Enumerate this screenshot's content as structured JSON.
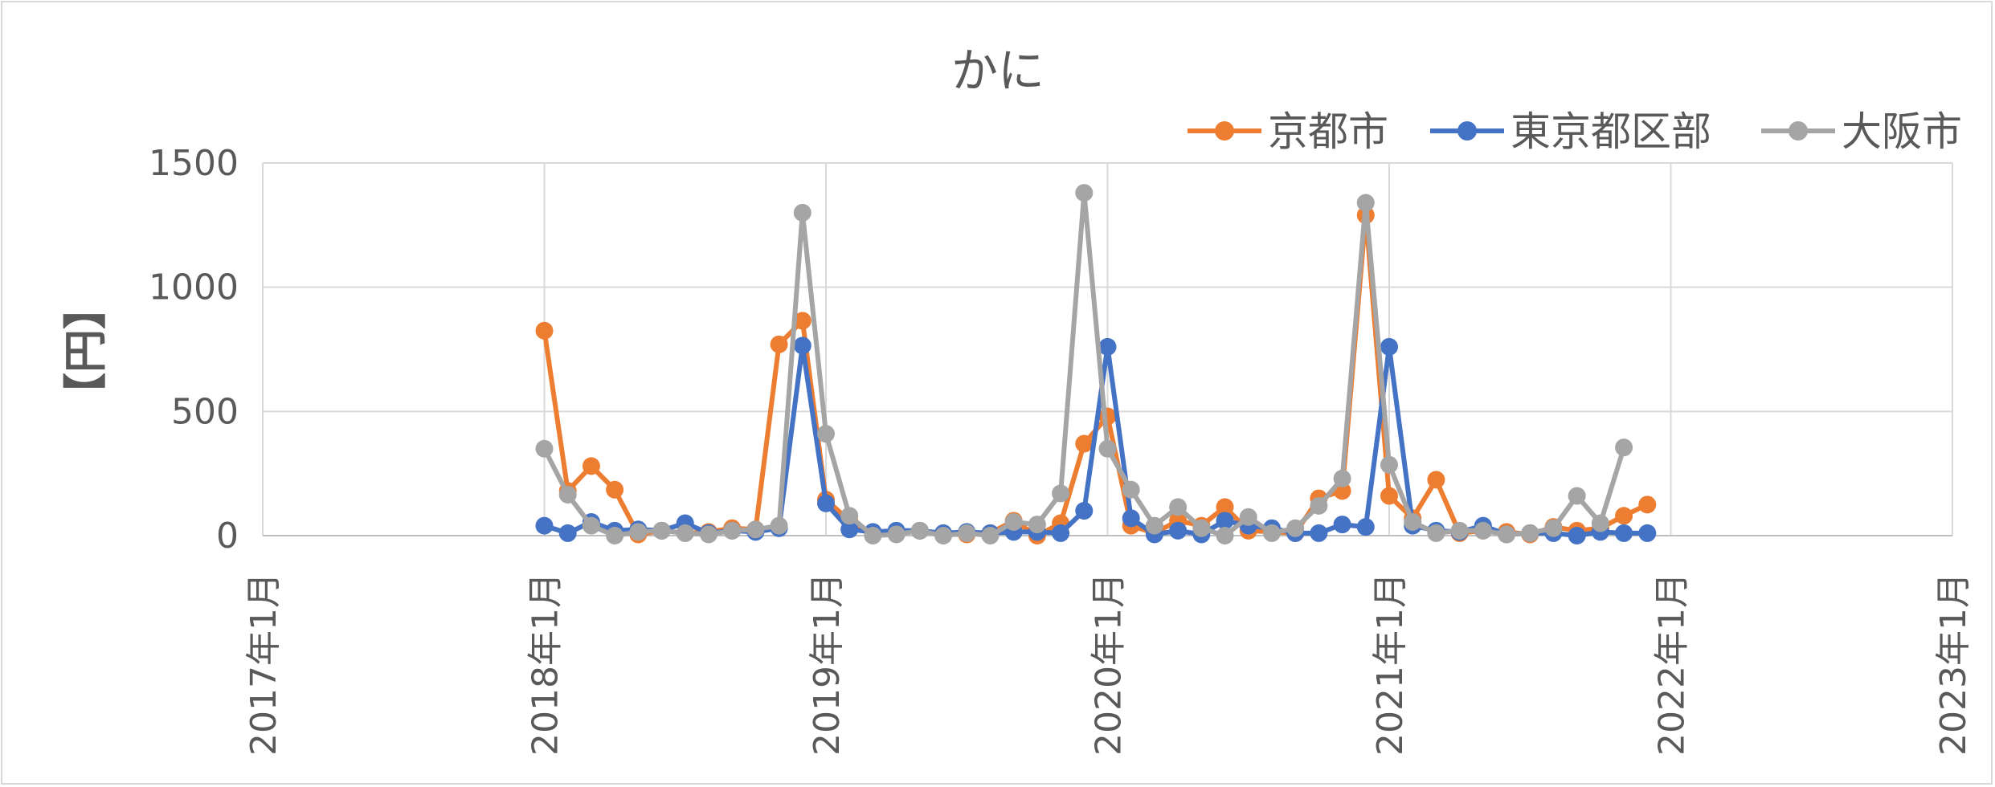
{
  "chart_data": {
    "type": "line",
    "title": "かに",
    "xlabel": "",
    "ylabel": "【円】",
    "ylim": [
      0,
      1500
    ],
    "yticks": [
      "0",
      "500",
      "1000",
      "1500"
    ],
    "xlim": [
      "2017-01",
      "2023-01"
    ],
    "xticks": [
      "2017年1月",
      "2018年1月",
      "2019年1月",
      "2020年1月",
      "2021年1月",
      "2022年1月",
      "2023年1月"
    ],
    "grid": true,
    "legend": "top-right",
    "x": [
      "2018-01",
      "2018-02",
      "2018-03",
      "2018-04",
      "2018-05",
      "2018-06",
      "2018-07",
      "2018-08",
      "2018-09",
      "2018-10",
      "2018-11",
      "2018-12",
      "2019-01",
      "2019-02",
      "2019-03",
      "2019-04",
      "2019-05",
      "2019-06",
      "2019-07",
      "2019-08",
      "2019-09",
      "2019-10",
      "2019-11",
      "2019-12",
      "2020-01",
      "2020-02",
      "2020-03",
      "2020-04",
      "2020-05",
      "2020-06",
      "2020-07",
      "2020-08",
      "2020-09",
      "2020-10",
      "2020-11",
      "2020-12",
      "2021-01",
      "2021-02",
      "2021-03",
      "2021-04",
      "2021-05",
      "2021-06",
      "2021-07",
      "2021-08",
      "2021-09",
      "2021-10",
      "2021-11",
      "2021-12"
    ],
    "series": [
      {
        "name": "京都市",
        "color": "#ED7D31",
        "values": [
          825,
          180,
          280,
          185,
          5,
          20,
          10,
          15,
          30,
          25,
          770,
          865,
          145,
          60,
          5,
          10,
          20,
          5,
          5,
          10,
          60,
          0,
          50,
          370,
          480,
          40,
          10,
          60,
          40,
          115,
          20,
          15,
          10,
          150,
          180,
          1290,
          160,
          70,
          225,
          10,
          20,
          15,
          5,
          35,
          20,
          30,
          80,
          125
        ]
      },
      {
        "name": "東京都区部",
        "color": "#4472C4",
        "values": [
          40,
          10,
          55,
          20,
          25,
          20,
          50,
          10,
          20,
          15,
          30,
          765,
          130,
          25,
          15,
          20,
          20,
          10,
          15,
          10,
          15,
          15,
          10,
          100,
          760,
          70,
          5,
          20,
          5,
          60,
          40,
          30,
          10,
          10,
          45,
          35,
          760,
          40,
          20,
          15,
          40,
          5,
          10,
          10,
          0,
          15,
          10,
          10
        ]
      },
      {
        "name": "大阪市",
        "color": "#A5A5A5",
        "values": [
          350,
          165,
          40,
          0,
          15,
          20,
          10,
          5,
          20,
          25,
          40,
          1300,
          410,
          80,
          0,
          5,
          20,
          0,
          10,
          0,
          55,
          45,
          170,
          1380,
          350,
          185,
          40,
          115,
          30,
          0,
          75,
          10,
          30,
          120,
          230,
          1340,
          285,
          55,
          10,
          20,
          20,
          5,
          10,
          30,
          160,
          50,
          355,
          null
        ]
      }
    ]
  }
}
